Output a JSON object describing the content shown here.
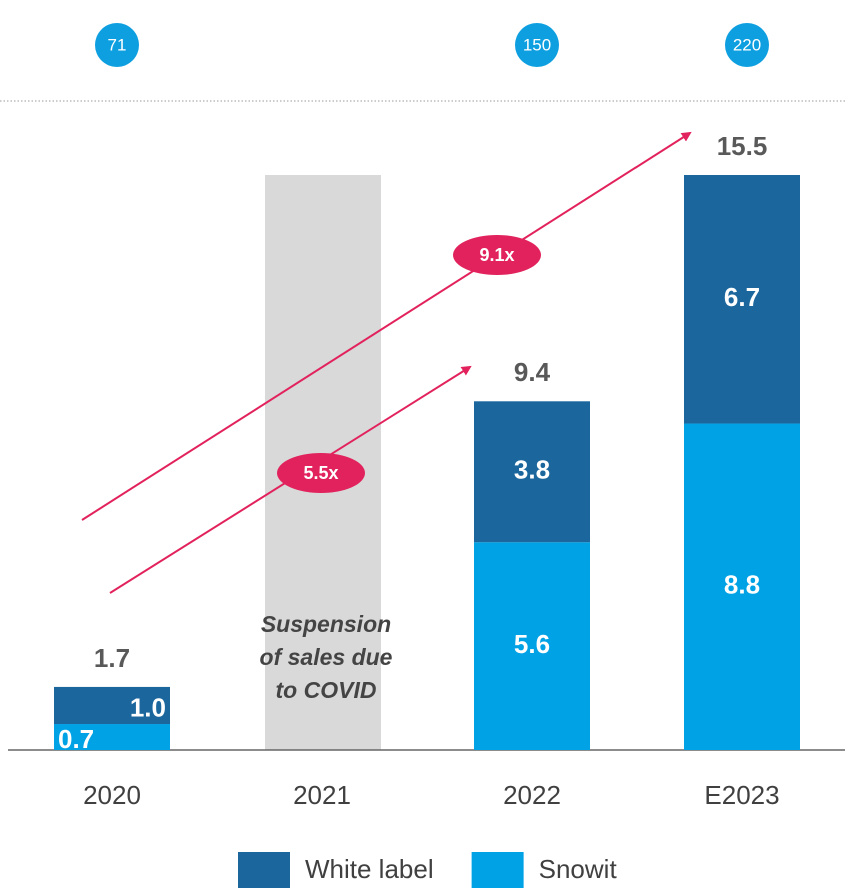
{
  "chart_data": {
    "type": "stacked_bar",
    "categories": [
      "2020",
      "2021",
      "2022",
      "E2023"
    ],
    "series": [
      {
        "name": "Snowit",
        "color": "#00a2e6",
        "values": [
          0.7,
          null,
          5.6,
          8.8
        ]
      },
      {
        "name": "White label",
        "color": "#1b679d",
        "values": [
          1.0,
          null,
          3.8,
          6.7
        ],
        "value_labels": [
          "1.0",
          null,
          "3.8",
          "6.7"
        ]
      }
    ],
    "totals": [
      1.7,
      null,
      9.4,
      15.5
    ],
    "circle_values": [
      71,
      null,
      150,
      220
    ],
    "ylim": [
      0,
      15.5
    ],
    "suspension": {
      "category": "2021",
      "lines": [
        "Suspension",
        "of sales due",
        "to COVID"
      ]
    },
    "growth_labels": [
      "9.1x",
      "5.5x"
    ],
    "legend_order": [
      "White label",
      "Snowit"
    ]
  }
}
